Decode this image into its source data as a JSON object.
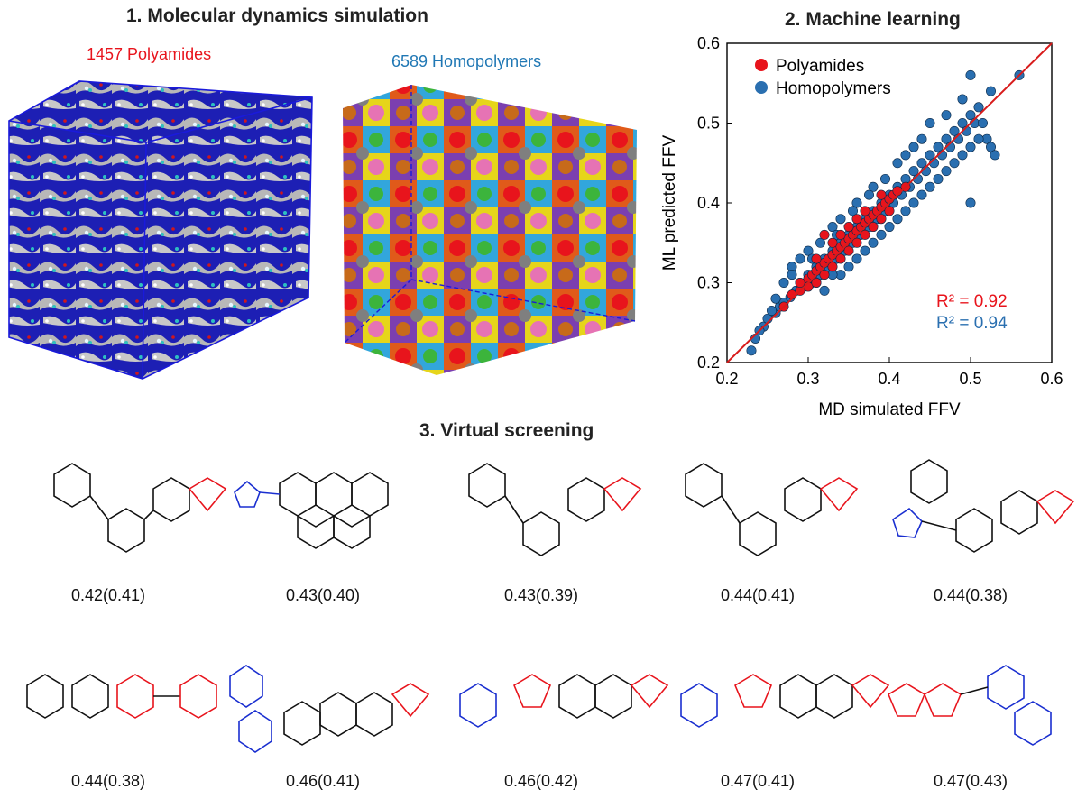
{
  "sections": {
    "md_title": "1. Molecular dynamics simulation",
    "ml_title": "2. Machine learning",
    "vs_title": "3. Virtual screening"
  },
  "md": {
    "polyamides_label": "1457 Polyamides",
    "homopolymers_label": "6589 Homopolymers",
    "colors": {
      "polyamides": "#ff0000",
      "homopolymers": "#1f77b4",
      "box_edge": "#1a1adb"
    }
  },
  "chart_data": {
    "type": "scatter",
    "xlabel": "MD simulated FFV",
    "ylabel": "ML predicted FFV",
    "xlim": [
      0.2,
      0.6
    ],
    "ylim": [
      0.2,
      0.6
    ],
    "xticks": [
      "0.2",
      "0.3",
      "0.4",
      "0.5",
      "0.6"
    ],
    "yticks": [
      "0.2",
      "0.3",
      "0.4",
      "0.5",
      "0.6"
    ],
    "legend_placement": "top-left",
    "grid": false,
    "series": [
      {
        "name": "Homopolymers",
        "color": "#2a6fb0",
        "values": [
          [
            0.23,
            0.215
          ],
          [
            0.235,
            0.23
          ],
          [
            0.245,
            0.245
          ],
          [
            0.25,
            0.255
          ],
          [
            0.26,
            0.262
          ],
          [
            0.265,
            0.27
          ],
          [
            0.27,
            0.275
          ],
          [
            0.278,
            0.282
          ],
          [
            0.285,
            0.29
          ],
          [
            0.29,
            0.3
          ],
          [
            0.295,
            0.295
          ],
          [
            0.3,
            0.31
          ],
          [
            0.305,
            0.3
          ],
          [
            0.31,
            0.32
          ],
          [
            0.315,
            0.31
          ],
          [
            0.32,
            0.33
          ],
          [
            0.325,
            0.32
          ],
          [
            0.33,
            0.34
          ],
          [
            0.335,
            0.33
          ],
          [
            0.34,
            0.35
          ],
          [
            0.345,
            0.34
          ],
          [
            0.35,
            0.36
          ],
          [
            0.355,
            0.35
          ],
          [
            0.36,
            0.37
          ],
          [
            0.365,
            0.36
          ],
          [
            0.37,
            0.38
          ],
          [
            0.375,
            0.37
          ],
          [
            0.38,
            0.39
          ],
          [
            0.385,
            0.38
          ],
          [
            0.39,
            0.4
          ],
          [
            0.395,
            0.39
          ],
          [
            0.4,
            0.41
          ],
          [
            0.405,
            0.4
          ],
          [
            0.41,
            0.42
          ],
          [
            0.415,
            0.41
          ],
          [
            0.42,
            0.43
          ],
          [
            0.425,
            0.42
          ],
          [
            0.43,
            0.44
          ],
          [
            0.435,
            0.43
          ],
          [
            0.44,
            0.45
          ],
          [
            0.445,
            0.44
          ],
          [
            0.45,
            0.46
          ],
          [
            0.455,
            0.45
          ],
          [
            0.46,
            0.47
          ],
          [
            0.465,
            0.46
          ],
          [
            0.47,
            0.48
          ],
          [
            0.475,
            0.47
          ],
          [
            0.48,
            0.49
          ],
          [
            0.485,
            0.48
          ],
          [
            0.49,
            0.5
          ],
          [
            0.495,
            0.49
          ],
          [
            0.5,
            0.51
          ],
          [
            0.505,
            0.5
          ],
          [
            0.51,
            0.52
          ],
          [
            0.515,
            0.5
          ],
          [
            0.52,
            0.48
          ],
          [
            0.525,
            0.47
          ],
          [
            0.53,
            0.46
          ],
          [
            0.5,
            0.56
          ],
          [
            0.525,
            0.54
          ],
          [
            0.56,
            0.56
          ],
          [
            0.5,
            0.4
          ],
          [
            0.45,
            0.5
          ],
          [
            0.44,
            0.48
          ],
          [
            0.42,
            0.46
          ],
          [
            0.41,
            0.45
          ],
          [
            0.38,
            0.42
          ],
          [
            0.36,
            0.4
          ],
          [
            0.34,
            0.38
          ],
          [
            0.33,
            0.37
          ],
          [
            0.3,
            0.34
          ],
          [
            0.29,
            0.33
          ],
          [
            0.28,
            0.32
          ],
          [
            0.32,
            0.29
          ],
          [
            0.34,
            0.31
          ],
          [
            0.36,
            0.33
          ],
          [
            0.38,
            0.35
          ],
          [
            0.4,
            0.37
          ],
          [
            0.42,
            0.39
          ],
          [
            0.44,
            0.41
          ],
          [
            0.46,
            0.43
          ],
          [
            0.48,
            0.45
          ],
          [
            0.5,
            0.47
          ],
          [
            0.43,
            0.47
          ],
          [
            0.47,
            0.51
          ],
          [
            0.49,
            0.53
          ],
          [
            0.395,
            0.43
          ],
          [
            0.375,
            0.41
          ],
          [
            0.355,
            0.39
          ],
          [
            0.335,
            0.36
          ],
          [
            0.315,
            0.35
          ],
          [
            0.305,
            0.33
          ],
          [
            0.27,
            0.3
          ],
          [
            0.26,
            0.28
          ],
          [
            0.24,
            0.24
          ],
          [
            0.255,
            0.265
          ],
          [
            0.28,
            0.31
          ],
          [
            0.31,
            0.3
          ],
          [
            0.33,
            0.31
          ],
          [
            0.35,
            0.32
          ],
          [
            0.37,
            0.34
          ],
          [
            0.39,
            0.36
          ],
          [
            0.41,
            0.38
          ],
          [
            0.43,
            0.4
          ],
          [
            0.45,
            0.42
          ],
          [
            0.47,
            0.44
          ],
          [
            0.49,
            0.46
          ],
          [
            0.51,
            0.48
          ]
        ]
      },
      {
        "name": "Polyamides",
        "color": "#e8141c",
        "values": [
          [
            0.27,
            0.27
          ],
          [
            0.28,
            0.285
          ],
          [
            0.29,
            0.29
          ],
          [
            0.3,
            0.305
          ],
          [
            0.305,
            0.31
          ],
          [
            0.31,
            0.315
          ],
          [
            0.315,
            0.32
          ],
          [
            0.32,
            0.325
          ],
          [
            0.325,
            0.33
          ],
          [
            0.33,
            0.335
          ],
          [
            0.335,
            0.34
          ],
          [
            0.34,
            0.345
          ],
          [
            0.345,
            0.35
          ],
          [
            0.35,
            0.355
          ],
          [
            0.355,
            0.36
          ],
          [
            0.36,
            0.365
          ],
          [
            0.365,
            0.37
          ],
          [
            0.37,
            0.375
          ],
          [
            0.375,
            0.38
          ],
          [
            0.38,
            0.385
          ],
          [
            0.385,
            0.39
          ],
          [
            0.39,
            0.395
          ],
          [
            0.395,
            0.4
          ],
          [
            0.4,
            0.405
          ],
          [
            0.405,
            0.41
          ],
          [
            0.41,
            0.415
          ],
          [
            0.3,
            0.295
          ],
          [
            0.31,
            0.3
          ],
          [
            0.32,
            0.31
          ],
          [
            0.33,
            0.32
          ],
          [
            0.34,
            0.33
          ],
          [
            0.35,
            0.34
          ],
          [
            0.36,
            0.35
          ],
          [
            0.37,
            0.36
          ],
          [
            0.38,
            0.37
          ],
          [
            0.39,
            0.38
          ],
          [
            0.4,
            0.39
          ],
          [
            0.29,
            0.3
          ],
          [
            0.31,
            0.33
          ],
          [
            0.33,
            0.35
          ],
          [
            0.35,
            0.37
          ],
          [
            0.37,
            0.39
          ],
          [
            0.39,
            0.41
          ],
          [
            0.32,
            0.36
          ],
          [
            0.36,
            0.38
          ],
          [
            0.34,
            0.36
          ],
          [
            0.42,
            0.42
          ]
        ]
      }
    ],
    "annotations": [
      {
        "text": "R² = 0.92",
        "color": "#e8141c"
      },
      {
        "text": "R² = 0.94",
        "color": "#2a6fb0"
      }
    ],
    "fit_line_color": "#d81b1b"
  },
  "screening": {
    "row1": [
      "0.42(0.41)",
      "0.43(0.40)",
      "0.43(0.39)",
      "0.44(0.41)",
      "0.44(0.38)"
    ],
    "row2": [
      "0.44(0.38)",
      "0.46(0.41)",
      "0.46(0.42)",
      "0.47(0.41)",
      "0.47(0.43)"
    ]
  }
}
